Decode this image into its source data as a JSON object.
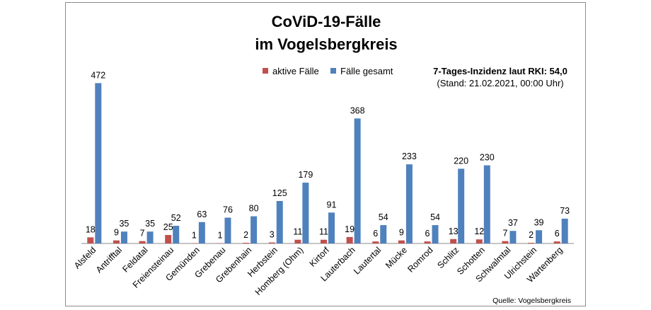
{
  "chart_data": {
    "type": "bar",
    "title_line1": "CoViD-19-Fälle",
    "title_line2": "im Vogelsbergkreis",
    "categories": [
      "Alsfeld",
      "Antrifftal",
      "Feldatal",
      "Freiensteinau",
      "Gemünden",
      "Grebenau",
      "Grebenhain",
      "Herbstein",
      "Homberg (Ohm)",
      "Kirtorf",
      "Lauterbach",
      "Lautertal",
      "Mücke",
      "Romrod",
      "Schlitz",
      "Schotten",
      "Schwalmtal",
      "Ulrichstein",
      "Wartenberg"
    ],
    "series": [
      {
        "name": "aktive Fälle",
        "color": "#c0504d",
        "values": [
          18,
          9,
          7,
          25,
          1,
          1,
          2,
          3,
          11,
          11,
          19,
          6,
          9,
          6,
          13,
          12,
          7,
          2,
          6
        ]
      },
      {
        "name": "Fälle gesamt",
        "color": "#4f81bd",
        "values": [
          472,
          35,
          35,
          52,
          63,
          76,
          80,
          125,
          179,
          91,
          368,
          54,
          233,
          54,
          220,
          230,
          37,
          39,
          73
        ]
      }
    ],
    "ylim": [
      0,
      500
    ],
    "grid": false,
    "legend_position": "top-center",
    "info_line1": "7-Tages-Inzidenz laut RKI: 54,0",
    "info_line2": "(Stand: 21.02.2021, 00:00 Uhr)",
    "source": "Quelle: Vogelsbergkreis"
  }
}
